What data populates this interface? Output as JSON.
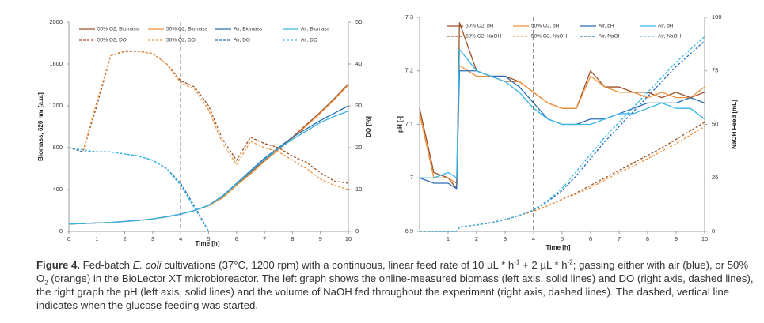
{
  "chart_data": [
    {
      "type": "line",
      "x": [
        0,
        0.5,
        1,
        1.5,
        2,
        2.5,
        3,
        3.5,
        4,
        4.5,
        5,
        5.5,
        6,
        6.5,
        7,
        7.5,
        8,
        8.5,
        9,
        9.5,
        10
      ],
      "xlim": [
        0,
        10
      ],
      "xticks": [
        0,
        1,
        2,
        3,
        4,
        5,
        6,
        7,
        8,
        9,
        10
      ],
      "ylim": [
        0,
        2000
      ],
      "yticks": [
        0,
        400,
        800,
        1200,
        1600,
        2000
      ],
      "y2lim": [
        0,
        50
      ],
      "y2ticks": [
        0,
        10,
        20,
        30,
        40,
        50
      ],
      "x_label": "Time [h]",
      "y_label": "Biomass, 620 nm [a.u.]",
      "y2_label": "DO [%]",
      "vline_x": 4,
      "series": [
        {
          "name": "50% O2, Biomass",
          "color": "#9c5127",
          "dash": false,
          "values": [
            70,
            75,
            80,
            85,
            95,
            105,
            120,
            140,
            165,
            200,
            250,
            330,
            450,
            560,
            680,
            790,
            900,
            1020,
            1140,
            1270,
            1410
          ]
        },
        {
          "name": "50% O2, Biomass",
          "color": "#f0923c",
          "dash": false,
          "values": [
            70,
            75,
            80,
            85,
            95,
            105,
            120,
            140,
            165,
            200,
            245,
            320,
            440,
            550,
            670,
            780,
            890,
            1010,
            1130,
            1260,
            1400
          ]
        },
        {
          "name": "Air, Biomass",
          "color": "#2a6db5",
          "dash": false,
          "values": [
            70,
            75,
            80,
            85,
            95,
            105,
            120,
            140,
            165,
            200,
            250,
            340,
            460,
            580,
            700,
            800,
            900,
            980,
            1060,
            1130,
            1200
          ]
        },
        {
          "name": "Air, Biomass",
          "color": "#35b6e6",
          "dash": false,
          "values": [
            70,
            75,
            80,
            85,
            95,
            105,
            120,
            140,
            165,
            200,
            250,
            335,
            455,
            570,
            690,
            790,
            880,
            960,
            1040,
            1100,
            1150
          ]
        },
        {
          "name": "50% O2, DO",
          "color": "#9c5127",
          "dash": true,
          "axis": "y2",
          "values": [
            20,
            19,
            30,
            42,
            43,
            43,
            42.5,
            40,
            36,
            34.5,
            30,
            22,
            17,
            22.5,
            21,
            20,
            18,
            16.5,
            14,
            12,
            11.5
          ]
        },
        {
          "name": "50% O2, DO",
          "color": "#f0923c",
          "dash": true,
          "axis": "y2",
          "values": [
            20,
            19,
            31,
            42,
            43.2,
            43,
            42.5,
            40,
            35.5,
            34,
            29,
            21,
            16,
            21.5,
            20,
            19,
            17,
            15,
            12.5,
            11,
            10
          ]
        },
        {
          "name": "Air, DO",
          "color": "#2a6db5",
          "dash": true,
          "axis": "y2",
          "values": [
            20,
            19,
            19,
            19,
            18.5,
            18,
            17,
            15,
            11.5,
            6,
            0,
            null,
            null,
            null,
            null,
            null,
            null,
            null,
            null,
            null,
            null
          ]
        },
        {
          "name": "Air, DO",
          "color": "#35b6e6",
          "dash": true,
          "axis": "y2",
          "values": [
            20,
            19.5,
            19,
            19,
            18.5,
            18,
            17,
            15,
            11,
            5.5,
            0,
            null,
            null,
            null,
            null,
            null,
            null,
            null,
            null,
            null,
            null
          ]
        }
      ]
    },
    {
      "type": "line",
      "x": [
        0,
        0.5,
        1,
        1.3,
        1.4,
        2,
        2.5,
        3,
        3.5,
        4,
        4.5,
        5,
        5.5,
        6,
        6.5,
        7,
        7.5,
        8,
        8.5,
        9,
        9.5,
        10
      ],
      "xlim": [
        0,
        10
      ],
      "xticks": [
        1,
        2,
        3,
        4,
        5,
        6,
        7,
        8,
        9,
        10
      ],
      "ylim": [
        6.9,
        7.3
      ],
      "yticks": [
        6.9,
        7,
        7.1,
        7.2,
        7.3
      ],
      "y2lim": [
        0,
        100
      ],
      "y2ticks": [
        0,
        25,
        50,
        75,
        100
      ],
      "x_label": "Time [h]",
      "y_label": "pH [-]",
      "y2_label": "NaOH Feed [mL]",
      "vline_x": 4,
      "series": [
        {
          "name": "50% O2, pH",
          "color": "#9c5127",
          "dash": false,
          "values": [
            7.13,
            7.01,
            7.0,
            6.98,
            7.29,
            7.2,
            7.19,
            7.19,
            7.18,
            7.16,
            7.14,
            7.13,
            7.13,
            7.2,
            7.17,
            7.17,
            7.16,
            7.16,
            7.15,
            7.16,
            7.15,
            7.16
          ]
        },
        {
          "name": "50% O2, pH",
          "color": "#f0923c",
          "dash": false,
          "values": [
            7.12,
            7.0,
            7.0,
            6.99,
            7.21,
            7.19,
            7.19,
            7.18,
            7.18,
            7.16,
            7.14,
            7.13,
            7.13,
            7.19,
            7.17,
            7.16,
            7.16,
            7.15,
            7.16,
            7.15,
            7.15,
            7.17
          ]
        },
        {
          "name": "Air, pH",
          "color": "#2a6db5",
          "dash": false,
          "values": [
            7.0,
            6.99,
            6.99,
            6.98,
            7.2,
            7.2,
            7.19,
            7.19,
            7.17,
            7.14,
            7.11,
            7.1,
            7.1,
            7.11,
            7.11,
            7.12,
            7.13,
            7.14,
            7.14,
            7.14,
            7.15,
            7.14
          ]
        },
        {
          "name": "Air, pH",
          "color": "#35b6e6",
          "dash": false,
          "values": [
            7.0,
            7.0,
            7.01,
            7.0,
            7.24,
            7.2,
            7.19,
            7.18,
            7.16,
            7.13,
            7.11,
            7.1,
            7.1,
            7.1,
            7.11,
            7.12,
            7.12,
            7.13,
            7.14,
            7.13,
            7.13,
            7.11
          ]
        },
        {
          "name": "50% O2, NaOH",
          "color": "#9c5127",
          "dash": true,
          "axis": "y2",
          "values": [
            0,
            0,
            0,
            0,
            2,
            3,
            4,
            5.5,
            7.5,
            9.5,
            12,
            15,
            18,
            21.5,
            25,
            28.5,
            32,
            35.5,
            39,
            43,
            47,
            51
          ]
        },
        {
          "name": "50% O2, NaOH",
          "color": "#f0923c",
          "dash": true,
          "axis": "y2",
          "values": [
            0,
            0,
            0,
            0,
            2,
            3,
            4,
            5.5,
            7.5,
            9.5,
            12,
            15,
            17.5,
            20.5,
            24,
            27.5,
            30.5,
            34,
            37.5,
            41,
            45,
            49
          ]
        },
        {
          "name": "Air, NaOH",
          "color": "#2a6db5",
          "dash": true,
          "axis": "y2",
          "values": [
            0,
            0,
            0,
            0,
            2,
            3,
            4,
            5.5,
            7.5,
            10,
            14,
            19,
            26,
            34,
            42,
            49,
            56,
            63,
            70,
            77,
            83,
            89
          ]
        },
        {
          "name": "Air, NaOH",
          "color": "#35b6e6",
          "dash": true,
          "axis": "y2",
          "values": [
            0,
            0,
            0,
            0,
            2,
            3,
            4,
            5.5,
            7.5,
            10,
            14.5,
            20,
            28,
            36,
            44,
            51,
            58,
            65,
            72,
            79,
            85,
            91
          ]
        }
      ]
    }
  ],
  "caption": {
    "label": "Figure 4.",
    "text": [
      " Fed-batch ",
      "E. coli",
      " cultivations (37°C, 1200 rpm) with a continuous, linear feed rate of 10 µL * h",
      "-1",
      " + 2 µL * h",
      "-2",
      "; gassing either with air (blue), or 50% O",
      "2",
      " (orange) in the BioLector XT microbioreactor. The left graph shows the online-measured biomass (left axis, solid lines) and DO (right axis, dashed lines), the right graph the pH (left axis, solid lines) and the volume of NaOH fed throughout the experiment (right axis, dashed lines). The dashed, vertical line indicates when the glucose feeding was started."
    ]
  }
}
